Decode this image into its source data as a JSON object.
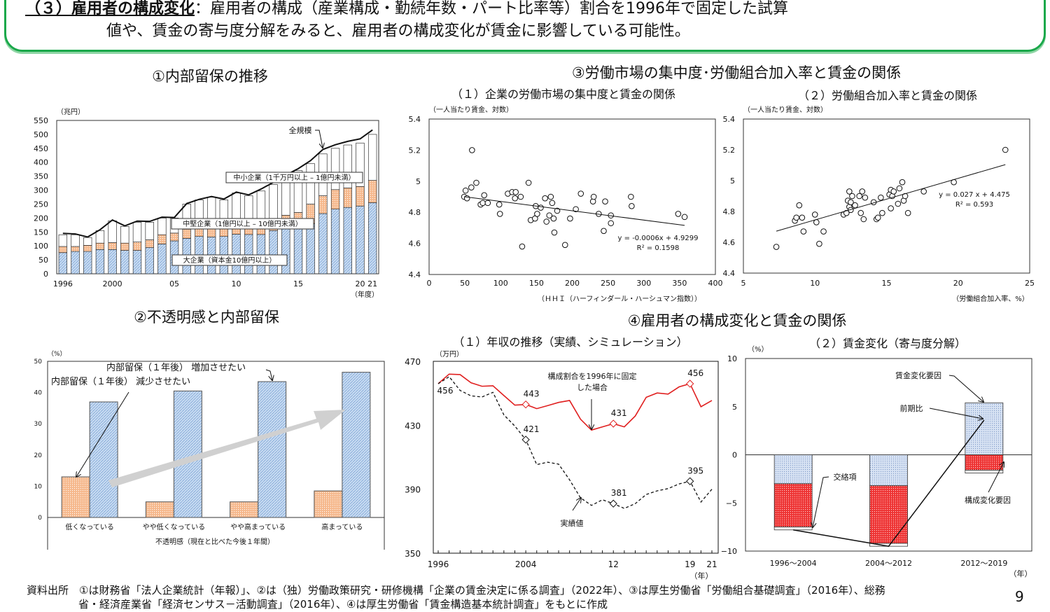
{
  "header": {
    "heading_underlined": "（３）雇用者の構成変化",
    "line1_rest": "：雇用者の構成（産業構成・勤続年数・パート比率等）割合を1996年で固定した試算",
    "line2": "値や、賃金の寄与度分解をみると、雇用者の構成変化が賃金に影響している可能性。"
  },
  "colors": {
    "frame": "#1aa84a",
    "blue": "#bcd3ef",
    "orange": "#f4b183",
    "red": "#ee3333",
    "gray_arrow": "#d0d0d0"
  },
  "chart_data": [
    {
      "id": "retained-earnings",
      "type": "bar",
      "stacked": true,
      "title": "①内部留保の推移",
      "ylabel": "（兆円）",
      "xlabel": "（年度）",
      "ylim": [
        0,
        550
      ],
      "yticks_step": 50,
      "x_tick_labels": [
        {
          "year": 1996,
          "label": "1996"
        },
        {
          "year": 2000,
          "label": "2000"
        },
        {
          "year": 2005,
          "label": "05"
        },
        {
          "year": 2010,
          "label": "10"
        },
        {
          "year": 2015,
          "label": "15"
        },
        {
          "year": 2020,
          "label": "20"
        },
        {
          "year": 2021,
          "label": "21"
        }
      ],
      "years": [
        1996,
        1997,
        1998,
        1999,
        2000,
        2001,
        2002,
        2003,
        2004,
        2005,
        2006,
        2007,
        2008,
        2009,
        2010,
        2011,
        2012,
        2013,
        2014,
        2015,
        2016,
        2017,
        2018,
        2019,
        2020,
        2021
      ],
      "series": [
        {
          "name": "大企業（資本金10億円以上）",
          "values": [
            76,
            80,
            80,
            87,
            87,
            84,
            84,
            94,
            107,
            118,
            127,
            134,
            132,
            134,
            142,
            141,
            141,
            155,
            165,
            175,
            180,
            216,
            232,
            238,
            243,
            255
          ]
        },
        {
          "name": "中堅企業（1億円以上 – 10億円未満）",
          "values": [
            22,
            18,
            22,
            23,
            25,
            26,
            30,
            28,
            33,
            28,
            33,
            31,
            33,
            31,
            28,
            29,
            31,
            27,
            45,
            45,
            70,
            64,
            70,
            70,
            70,
            80
          ]
        },
        {
          "name": "中小企業（1千万円以上 – 1億円未満）",
          "values": [
            42,
            42,
            28,
            45,
            78,
            60,
            71,
            63,
            60,
            54,
            90,
            100,
            110,
            100,
            120,
            110,
            125,
            138,
            145,
            150,
            145,
            150,
            148,
            154,
            156,
            165
          ]
        }
      ],
      "line": {
        "name": "全規模",
        "values": [
          145,
          143,
          132,
          158,
          193,
          172,
          189,
          188,
          203,
          202,
          252,
          267,
          277,
          268,
          293,
          283,
          304,
          328,
          354,
          377,
          406,
          446,
          463,
          475,
          484,
          516
        ]
      }
    },
    {
      "id": "uncertainty-retained",
      "type": "bar",
      "title": "②不透明感と内部留保",
      "ylabel": "（%）",
      "xlabel": "不透明感（現在と比べた今後１年間）",
      "ylim": [
        0,
        50
      ],
      "yticks_step": 10,
      "categories": [
        "低くなっている",
        "やや低くなっている",
        "やや高まっている",
        "高まっている"
      ],
      "series": [
        {
          "name": "内部留保（１年後） 減少させたい",
          "values": [
            13,
            5,
            5,
            8.5
          ]
        },
        {
          "name": "内部留保（１年後） 増加させたい",
          "values": [
            37,
            40.5,
            43.5,
            46.5
          ]
        }
      ]
    },
    {
      "id": "hhi-wage",
      "type": "scatter",
      "group_title": "③労働市場の集中度･労働組合加入率と賃金の関係",
      "title": "（１）企業の労働市場の集中度と賃金の関係",
      "ylabel": "（一人当たり賃金、対数）",
      "xlabel": "（ＨＨＩ（ハーフィンダール・ハーシュマン指数））",
      "xlim": [
        0,
        400
      ],
      "xticks_step": 50,
      "ylim": [
        4.4,
        5.4
      ],
      "yticks": [
        "4.4",
        "4.6",
        "4.8",
        "5",
        "5.2",
        "5.4"
      ],
      "points": [
        [
          49,
          4.9
        ],
        [
          51,
          4.94
        ],
        [
          53,
          4.89
        ],
        [
          59,
          4.96
        ],
        [
          60,
          5.2
        ],
        [
          66,
          4.99
        ],
        [
          72,
          4.85
        ],
        [
          75,
          4.86
        ],
        [
          77,
          4.91
        ],
        [
          82,
          4.86
        ],
        [
          98,
          4.85
        ],
        [
          99,
          4.79
        ],
        [
          110,
          4.92
        ],
        [
          116,
          4.93
        ],
        [
          120,
          4.89
        ],
        [
          121,
          4.93
        ],
        [
          128,
          4.9
        ],
        [
          130,
          4.58
        ],
        [
          139,
          4.99
        ],
        [
          142,
          4.75
        ],
        [
          148,
          4.76
        ],
        [
          149,
          4.84
        ],
        [
          151,
          4.79
        ],
        [
          156,
          4.83
        ],
        [
          162,
          4.89
        ],
        [
          164,
          4.74
        ],
        [
          168,
          4.78
        ],
        [
          170,
          4.9
        ],
        [
          172,
          4.86
        ],
        [
          174,
          4.76
        ],
        [
          175,
          4.67
        ],
        [
          179,
          4.81
        ],
        [
          190,
          4.59
        ],
        [
          197,
          4.76
        ],
        [
          205,
          4.82
        ],
        [
          212,
          4.92
        ],
        [
          229,
          4.87
        ],
        [
          230,
          4.9
        ],
        [
          237,
          4.79
        ],
        [
          244,
          4.68
        ],
        [
          246,
          4.87
        ],
        [
          254,
          4.78
        ],
        [
          254,
          4.73
        ],
        [
          282,
          4.9
        ],
        [
          283,
          4.84
        ],
        [
          348,
          4.79
        ],
        [
          357,
          4.77
        ]
      ],
      "trend": {
        "slope": -0.0006,
        "intercept": 4.9299,
        "xrange": [
          49,
          357
        ],
        "equation": "y = -0.0006x + 4.9299",
        "r2": "R² = 0.1598"
      }
    },
    {
      "id": "union-wage",
      "type": "scatter",
      "title": "（２）労働組合加入率と賃金の関係",
      "ylabel": "（一人当たり賃金、対数）",
      "xlabel": "（労働組合加入率、%）",
      "xlim": [
        5,
        25
      ],
      "xticks_step": 5,
      "ylim": [
        4.4,
        5.4
      ],
      "yticks": [
        "4.4",
        "4.6",
        "4.8",
        "5",
        "5.2",
        "5.4"
      ],
      "points": [
        [
          7.3,
          4.57
        ],
        [
          8.6,
          4.74
        ],
        [
          8.7,
          4.76
        ],
        [
          8.9,
          4.84
        ],
        [
          9.1,
          4.76
        ],
        [
          9.2,
          4.67
        ],
        [
          10,
          4.78
        ],
        [
          10.1,
          4.73
        ],
        [
          10.3,
          4.59
        ],
        [
          10.6,
          4.67
        ],
        [
          12,
          4.78
        ],
        [
          12.2,
          4.79
        ],
        [
          12.3,
          4.87
        ],
        [
          12.4,
          4.93
        ],
        [
          12.4,
          4.83
        ],
        [
          12.5,
          4.81
        ],
        [
          12.5,
          4.86
        ],
        [
          12.6,
          4.9
        ],
        [
          12.8,
          4.84
        ],
        [
          13.1,
          4.9
        ],
        [
          13.2,
          4.79
        ],
        [
          13.3,
          4.93
        ],
        [
          13.4,
          4.75
        ],
        [
          13.5,
          4.89
        ],
        [
          14.1,
          4.86
        ],
        [
          14.3,
          4.75
        ],
        [
          14.4,
          4.76
        ],
        [
          14.6,
          4.89
        ],
        [
          14.7,
          4.79
        ],
        [
          15.2,
          4.91
        ],
        [
          15.3,
          4.94
        ],
        [
          15.3,
          4.82
        ],
        [
          15.4,
          4.9
        ],
        [
          15.5,
          4.93
        ],
        [
          15.8,
          4.85
        ],
        [
          15.9,
          4.95
        ],
        [
          16.1,
          4.99
        ],
        [
          16.2,
          4.87
        ],
        [
          16.3,
          4.9
        ],
        [
          16.5,
          4.79
        ],
        [
          17.6,
          4.93
        ],
        [
          19.7,
          4.99
        ],
        [
          23.3,
          5.2
        ]
      ],
      "trend": {
        "slope": 0.027,
        "intercept": 4.475,
        "xrange": [
          7.3,
          23.3
        ],
        "equation": "y = 0.027 x + 4.475",
        "r2": "R² = 0.593"
      }
    },
    {
      "id": "annual-income",
      "type": "line",
      "group_title": "④雇用者の構成変化と賃金の関係",
      "title": "（１）年収の推移（実績、シミュレーション）",
      "ylabel": "（万円）",
      "xlabel": "（年）",
      "ylim": [
        350,
        470
      ],
      "yticks": [
        350,
        390,
        430,
        470
      ],
      "x_tick_labels": [
        {
          "year": 1996,
          "label": "1996"
        },
        {
          "year": 2004,
          "label": "2004"
        },
        {
          "year": 2012,
          "label": "12"
        },
        {
          "year": 2019,
          "label": "19"
        },
        {
          "year": 2021,
          "label": "21"
        }
      ],
      "years": [
        1996,
        1997,
        1998,
        1999,
        2000,
        2001,
        2002,
        2003,
        2004,
        2005,
        2006,
        2007,
        2008,
        2009,
        2010,
        2011,
        2012,
        2013,
        2014,
        2015,
        2016,
        2017,
        2018,
        2019,
        2020,
        2021
      ],
      "series": [
        {
          "name": "構成割合を1996年に固定した場合",
          "color": "#e02020",
          "dash": false,
          "values": [
            456,
            462,
            461.7,
            456.6,
            454.4,
            454.7,
            448.6,
            442.6,
            443,
            440.4,
            442.3,
            444.3,
            445.5,
            433.8,
            427,
            429,
            431,
            429,
            435.8,
            447.5,
            450.2,
            449.5,
            454,
            456,
            441.6,
            445.5
          ]
        },
        {
          "name": "実績値",
          "color": "#111111",
          "dash": true,
          "values": [
            456,
            460.4,
            451.8,
            448.4,
            447.7,
            450.6,
            436.5,
            429.5,
            421,
            405.4,
            406.9,
            405.7,
            395.9,
            384.6,
            379.9,
            383.4,
            381,
            378,
            381,
            386.7,
            389,
            390.4,
            393.3,
            395,
            382,
            390
          ]
        }
      ],
      "annotations": {
        "fixed_line1": "構成割合を1996年に固定",
        "fixed_line2": "した場合",
        "actual": "実績値"
      },
      "data_labels": [
        {
          "series": 0,
          "year": 1996,
          "text": "456",
          "marker": false
        },
        {
          "series": 0,
          "year": 2004,
          "text": "443",
          "marker": true
        },
        {
          "series": 1,
          "year": 2004,
          "text": "421",
          "marker": true
        },
        {
          "series": 0,
          "year": 2012,
          "text": "431",
          "marker": true
        },
        {
          "series": 1,
          "year": 2012,
          "text": "381",
          "marker": true
        },
        {
          "series": 0,
          "year": 2019,
          "text": "456",
          "marker": true
        },
        {
          "series": 1,
          "year": 2019,
          "text": "395",
          "marker": true
        }
      ]
    },
    {
      "id": "wage-decomposition",
      "type": "bar",
      "stacked": true,
      "title": "（２）賃金変化（寄与度分解）",
      "ylabel": "（%）",
      "xlabel": "（年）",
      "ylim": [
        -10,
        10
      ],
      "yticks": [
        -10,
        -5,
        0,
        5,
        10
      ],
      "categories": [
        "1996～2004",
        "2004～2012",
        "2012～2019"
      ],
      "series": [
        {
          "name": "賃金変化要因",
          "values": [
            -3.0,
            -3.2,
            5.4
          ]
        },
        {
          "name": "構成変化要因",
          "values": [
            -4.5,
            -6.0,
            -1.6
          ]
        },
        {
          "name": "交絡項",
          "values": [
            -0.3,
            -0.3,
            -0.3
          ]
        }
      ],
      "line": {
        "name": "前期比",
        "values": [
          -7.8,
          -9.5,
          3.6
        ]
      }
    }
  ],
  "footer": {
    "line1": "資料出所　①は財務省「法人企業統計（年報）」、②は（独）労働政策研究・研修機構「企業の賃金決定に係る調査」（2022年）、③は厚生労働省「労働組合基礎調査」（2016年）、総務",
    "line2": "省・経済産業省「経済センサス－活動調査」（2016年）、④は厚生労働省「賃金構造基本統計調査」をもとに作成",
    "page_number": "9"
  }
}
